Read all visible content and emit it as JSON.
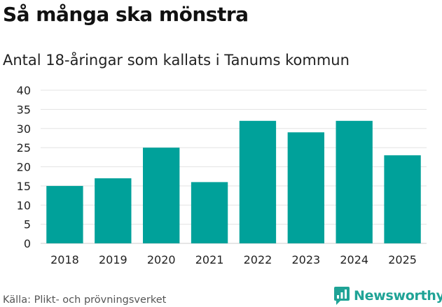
{
  "title": "Så många ska mönstra",
  "subtitle": "Antal 18-åringar som kallats i Tanums kommun",
  "source": "Källa: Plikt- och prövningsverket",
  "brand": {
    "name": "Newsworthy",
    "color": "#1fa396"
  },
  "colors": {
    "bar": "#00a19a",
    "grid": "#e3e3e3",
    "axis": "#cccccc",
    "tick_text": "#222222"
  },
  "chart_data": {
    "type": "bar",
    "categories": [
      "2018",
      "2019",
      "2020",
      "2021",
      "2022",
      "2023",
      "2024",
      "2025"
    ],
    "values": [
      15,
      17,
      25,
      16,
      32,
      29,
      32,
      23
    ],
    "title": "Så många ska mönstra",
    "subtitle": "Antal 18-åringar som kallats i Tanums kommun",
    "xlabel": "",
    "ylabel": "",
    "ylim": [
      0,
      40
    ],
    "yticks": [
      0,
      5,
      10,
      15,
      20,
      25,
      30,
      35,
      40
    ],
    "grid": true,
    "legend": "none"
  }
}
